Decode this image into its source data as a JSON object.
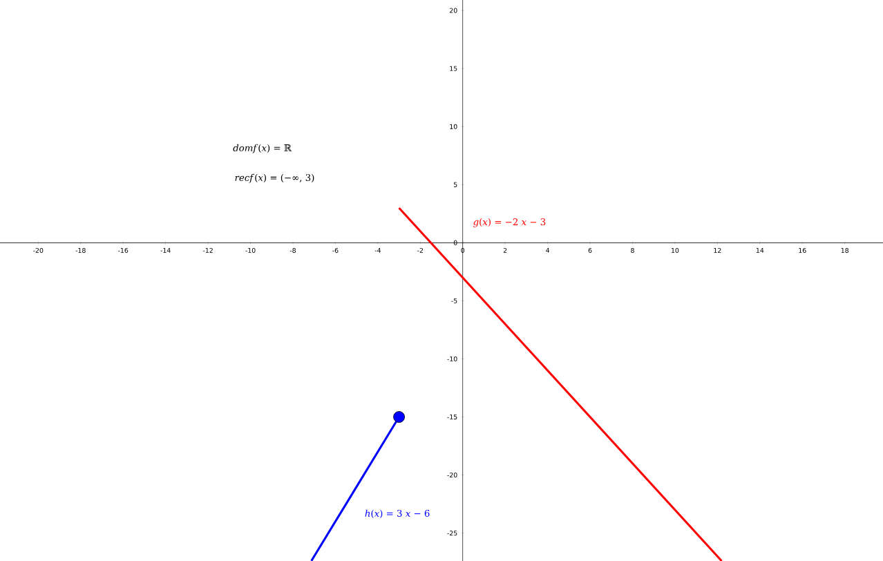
{
  "chart_data": {
    "type": "line",
    "series": [
      {
        "name": "*g*(*x*) = −2 *x* − 3",
        "color": "#ff0000",
        "x": [
          -3,
          12.2
        ],
        "values": [
          3,
          -27.4
        ]
      },
      {
        "name": "*h*(*x*) = 3 *x* − 6",
        "color": "#0000ff",
        "x": [
          -7.13,
          -3
        ],
        "values": [
          -27.39,
          -15
        ]
      },
      {
        "type": "scatter",
        "color": "#0000ff",
        "x": [
          -3
        ],
        "values": [
          -15
        ],
        "marker": "circle"
      }
    ],
    "annotations": [
      "*domf*(*x*) = ℝ",
      "*recf*(*x*) = (−∞, 3)"
    ],
    "xlim": [
      -21.8,
      19.8
    ],
    "ylim": [
      -27.4,
      20.9
    ],
    "xticks": [
      -20,
      -18,
      -16,
      -14,
      -12,
      -10,
      -8,
      -6,
      -4,
      -2,
      0,
      2,
      4,
      6,
      8,
      10,
      12,
      14,
      16,
      18
    ],
    "yticks": [
      -25,
      -20,
      -15,
      -10,
      -5,
      0,
      5,
      10,
      15,
      20
    ],
    "grid": false,
    "line_style": "solid"
  }
}
